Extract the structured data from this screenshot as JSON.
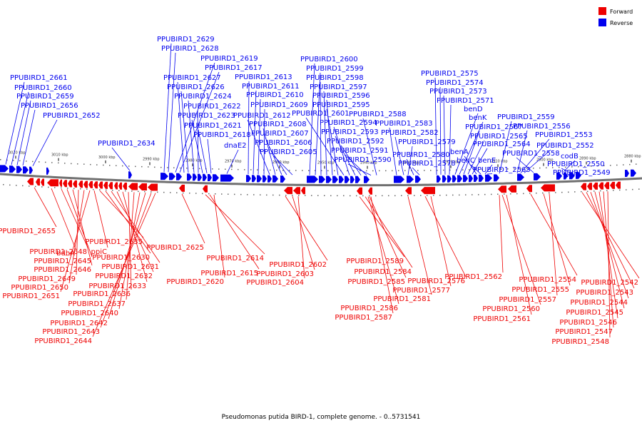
{
  "colors": {
    "forward": "#ee0000",
    "reverse": "#0000ee",
    "backbone": "#707070"
  },
  "legend": [
    {
      "label": "Forward",
      "color": "#ee0000"
    },
    {
      "label": "Reverse",
      "color": "#0000ee"
    }
  ],
  "caption": "Pseudomonas putida BIRD-1, complete genome. - 0..5731541",
  "ticks_top": [
    "3020 kbp",
    "3010 kbp",
    "3000 kbp",
    "2990 kbp",
    "2980 kbp",
    "2970 kbp",
    "2960 kbp",
    "2950 kbp",
    "2940 kbp",
    "2930 kbp",
    "2920 kbp",
    "2910 kbp",
    "2900 kbp",
    "2890 kbp",
    "2880 kbp"
  ],
  "reverse_labels": [
    "PPUBIRD1_2661",
    "PPUBIRD1_2660",
    "PPUBIRD1_2659",
    "PPUBIRD1_2656",
    "PPUBIRD1_2652",
    "PPUBIRD1_2634",
    "PPUBIRD1_2629",
    "PPUBIRD1_2628",
    "PPUBIRD1_2619",
    "PPUBIRD1_2617",
    "PPUBIRD1_2627",
    "PPUBIRD1_2626",
    "PPUBIRD1_2624",
    "PPUBIRD1_2622",
    "PPUBIRD1_2623",
    "PPUBIRD1_2621",
    "PPUBIRD1_2618",
    "dnaE2",
    "PPUBIRD1_2613",
    "PPUBIRD1_2611",
    "PPUBIRD1_2610",
    "PPUBIRD1_2609",
    "PPUBIRD1_2612",
    "PPUBIRD1_2608",
    "PPUBIRD1_2607",
    "PPUBIRD1_2606",
    "PPUBIRD1_2605",
    "PPUBIRD1_2600",
    "PPUBIRD1_2599",
    "PPUBIRD1_2598",
    "PPUBIRD1_2597",
    "PPUBIRD1_2596",
    "PPUBIRD1_2595",
    "PPUBIRD1_2601",
    "PPUBIRD1_2594",
    "PPUBIRD1_2593",
    "PPUBIRD1_2592",
    "PPUBIRD1_2591",
    "PPUBIRD1_2590",
    "PPUBIRD1_2588",
    "PPUBIRD1_2583",
    "PPUBIRD1_2582",
    "PPUBIRD1_2579",
    "PPUBIRD1_2580",
    "PPUBIRD1_2578",
    "PPUBIRD1_2575",
    "PPUBIRD1_2574",
    "PPUBIRD1_2573",
    "PPUBIRD1_2571",
    "benD",
    "benK",
    "PPUBIRD1_2567",
    "PPUBIRD1_2565",
    "PPUBIRD1_2564",
    "benA",
    "benC",
    "benE",
    "PPUBIRD1_2563",
    "PPUBIRD1_2559",
    "PPUBIRD1_2556",
    "PPUBIRD1_2553",
    "PPUBIRD1_2552",
    "PPUBIRD1_2558",
    "codB",
    "PPUBIRD1_2550",
    "PPUBIRD1_2549"
  ],
  "forward_labels": [
    "PPUBIRD1_2655",
    "bdhA",
    "PPUBIRD1_2648",
    "PPUBIRD1_2645",
    "PPUBIRD1_2646",
    "PPUBIRD1_2649",
    "PPUBIRD1_2650",
    "PPUBIRD1_2651",
    "ppiC",
    "PPUBIRD1_2635",
    "PPUBIRD1_2630",
    "PPUBIRD1_2631",
    "PPUBIRD1_2632",
    "PPUBIRD1_2633",
    "PPUBIRD1_2636",
    "PPUBIRD1_2637",
    "PPUBIRD1_2640",
    "PPUBIRD1_2642",
    "PPUBIRD1_2643",
    "PPUBIRD1_2644",
    "PPUBIRD1_2625",
    "PPUBIRD1_2614",
    "PPUBIRD1_2615",
    "PPUBIRD1_2620",
    "PPUBIRD1_2602",
    "PPUBIRD1_2603",
    "PPUBIRD1_2604",
    "PPUBIRD1_2589",
    "PPUBIRD1_2584",
    "PPUBIRD1_2585",
    "PPUBIRD1_2576",
    "PPUBIRD1_2577",
    "PPUBIRD1_2581",
    "PPUBIRD1_2586",
    "PPUBIRD1_2587",
    "PPUBIRD1_2562",
    "PPUBIRD1_2554",
    "PPUBIRD1_2555",
    "PPUBIRD1_2557",
    "PPUBIRD1_2560",
    "PPUBIRD1_2561",
    "PPUBIRD1_2542",
    "PPUBIRD1_2543",
    "PPUBIRD1_2544",
    "PPUBIRD1_2545",
    "PPUBIRD1_2546",
    "PPUBIRD1_2547",
    "PPUBIRD1_2548"
  ]
}
